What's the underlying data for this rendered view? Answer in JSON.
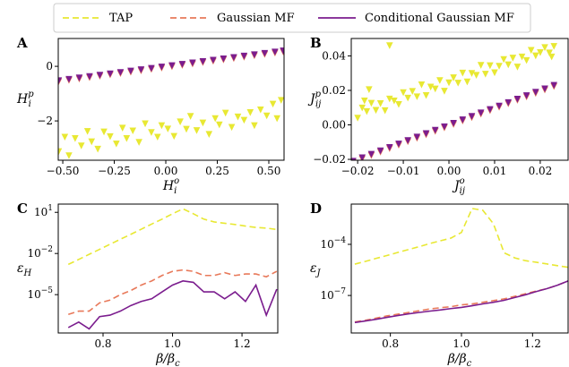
{
  "chart_data": [
    {
      "type": "scatter",
      "panel": "A",
      "xlabel": {
        "base": "H",
        "sub": "i",
        "sup": "o"
      },
      "ylabel": {
        "base": "H",
        "sub": "i",
        "sup": "p"
      },
      "xlim": [
        -0.522,
        0.574
      ],
      "xticks": [
        {
          "value": -0.5,
          "label": "−0.50"
        },
        {
          "value": -0.25,
          "label": "−0.25"
        },
        {
          "value": 0,
          "label": "0.00"
        },
        {
          "value": 0.25,
          "label": "0.25"
        },
        {
          "value": 0.5,
          "label": "0.50"
        }
      ],
      "ylim": [
        -3.44,
        1.02
      ],
      "yticks": [
        {
          "value": -2,
          "label": "−2"
        },
        0
      ],
      "series": [
        {
          "name": "TAP",
          "color": "#e8e833",
          "linestyle": "dashed",
          "marker": "v",
          "x": [
            -0.52,
            -0.49,
            -0.47,
            -0.44,
            -0.41,
            -0.38,
            -0.36,
            -0.33,
            -0.3,
            -0.27,
            -0.24,
            -0.21,
            -0.19,
            -0.16,
            -0.13,
            -0.1,
            -0.07,
            -0.04,
            -0.02,
            0.01,
            0.04,
            0.07,
            0.1,
            0.12,
            0.15,
            0.18,
            0.21,
            0.24,
            0.26,
            0.29,
            0.32,
            0.35,
            0.38,
            0.41,
            0.43,
            0.46,
            0.49,
            0.52,
            0.54,
            0.56
          ],
          "values": [
            -3.12,
            -2.59,
            -3.27,
            -2.64,
            -2.91,
            -2.38,
            -2.76,
            -3.03,
            -2.4,
            -2.57,
            -2.84,
            -2.26,
            -2.64,
            -2.36,
            -2.78,
            -2.1,
            -2.42,
            -2.59,
            -2.17,
            -2.29,
            -2.56,
            -2.03,
            -2.3,
            -1.83,
            -2.35,
            -2.07,
            -2.49,
            -1.91,
            -2.14,
            -1.71,
            -2.23,
            -1.85,
            -1.97,
            -1.69,
            -2.17,
            -1.59,
            -1.81,
            -1.38,
            -1.91,
            -1.24
          ]
        },
        {
          "name": "Gaussian MF",
          "color": "#e8795a",
          "linestyle": "dashed",
          "marker": "v",
          "x": [
            -0.52,
            -0.47,
            -0.42,
            -0.37,
            -0.32,
            -0.27,
            -0.22,
            -0.17,
            -0.12,
            -0.07,
            -0.02,
            0.03,
            0.08,
            0.13,
            0.18,
            0.23,
            0.28,
            0.33,
            0.38,
            0.43,
            0.48,
            0.53,
            0.57
          ],
          "values": [
            -0.56,
            -0.51,
            -0.46,
            -0.41,
            -0.36,
            -0.31,
            -0.26,
            -0.21,
            -0.16,
            -0.11,
            -0.06,
            -0.01,
            0.04,
            0.09,
            0.14,
            0.19,
            0.24,
            0.29,
            0.34,
            0.39,
            0.44,
            0.49,
            0.53
          ]
        },
        {
          "name": "Conditional Gaussian MF",
          "color": "#7b1d8e",
          "linestyle": "solid",
          "marker": "v",
          "x": [
            -0.52,
            -0.47,
            -0.42,
            -0.37,
            -0.32,
            -0.27,
            -0.22,
            -0.17,
            -0.12,
            -0.07,
            -0.02,
            0.03,
            0.08,
            0.13,
            0.18,
            0.23,
            0.28,
            0.33,
            0.38,
            0.43,
            0.48,
            0.53,
            0.57
          ],
          "values": [
            -0.52,
            -0.47,
            -0.42,
            -0.37,
            -0.32,
            -0.27,
            -0.22,
            -0.17,
            -0.12,
            -0.07,
            -0.02,
            0.03,
            0.08,
            0.13,
            0.18,
            0.23,
            0.28,
            0.33,
            0.38,
            0.43,
            0.48,
            0.53,
            0.57
          ]
        }
      ]
    },
    {
      "type": "scatter",
      "panel": "B",
      "xlabel": {
        "base": "J",
        "sub": "ij",
        "sup": "o"
      },
      "ylabel": {
        "base": "J",
        "sub": "ij",
        "sup": "p"
      },
      "xlim": [
        -0.0214,
        0.0261
      ],
      "xticks": [
        {
          "value": -0.02,
          "label": "−0.02"
        },
        {
          "value": -0.01,
          "label": "−0.01"
        },
        {
          "value": 0,
          "label": "0.00"
        },
        0.01,
        0.02
      ],
      "ylim": [
        -0.0205,
        0.0501
      ],
      "yticks": [
        {
          "value": -0.02,
          "label": "−0.02"
        },
        {
          "value": 0,
          "label": "0.00"
        },
        0.02,
        0.04
      ],
      "series": [
        {
          "color": "#e8e833",
          "marker": "v",
          "x": [
            -0.02,
            -0.019,
            -0.018,
            -0.017,
            -0.016,
            -0.015,
            -0.014,
            -0.013,
            -0.012,
            -0.011,
            -0.01,
            -0.009,
            -0.008,
            -0.007,
            -0.006,
            -0.005,
            -0.004,
            -0.003,
            -0.002,
            -0.001,
            0.0,
            0.001,
            0.002,
            0.003,
            0.004,
            0.005,
            0.006,
            0.007,
            0.008,
            0.009,
            0.01,
            0.011,
            0.012,
            0.013,
            0.014,
            0.015,
            0.016,
            0.017,
            0.018,
            0.019,
            0.02,
            0.021,
            0.022,
            0.023,
            -0.013,
            -0.0175,
            -0.0185,
            0.0225
          ],
          "values": [
            0.004,
            0.0099,
            0.0078,
            0.0126,
            0.0085,
            0.0124,
            0.0083,
            0.0151,
            0.014,
            0.0119,
            0.0188,
            0.0156,
            0.0195,
            0.0164,
            0.0233,
            0.0171,
            0.022,
            0.0209,
            0.0258,
            0.0196,
            0.0245,
            0.0274,
            0.0243,
            0.0301,
            0.025,
            0.0299,
            0.0288,
            0.0346,
            0.0295,
            0.0344,
            0.0303,
            0.0341,
            0.038,
            0.0349,
            0.0388,
            0.0336,
            0.0395,
            0.0374,
            0.0433,
            0.0401,
            0.042,
            0.0449,
            0.0418,
            0.0456,
            0.046,
            0.0205,
            0.014,
            0.0395
          ]
        },
        {
          "color": "#e8795a",
          "marker": "v",
          "x": [
            -0.021,
            -0.019,
            -0.017,
            -0.015,
            -0.013,
            -0.011,
            -0.009,
            -0.007,
            -0.005,
            -0.003,
            -0.001,
            0.001,
            0.003,
            0.005,
            0.007,
            0.009,
            0.011,
            0.013,
            0.015,
            0.017,
            0.019,
            0.021,
            0.023
          ],
          "values": [
            -0.0217,
            -0.0197,
            -0.0177,
            -0.0157,
            -0.0137,
            -0.0117,
            -0.0097,
            -0.0077,
            -0.0057,
            -0.0037,
            -0.0017,
            0.0003,
            0.0023,
            0.0043,
            0.0063,
            0.0083,
            0.0103,
            0.0123,
            0.0143,
            0.0163,
            0.0183,
            0.0203,
            0.0223
          ]
        },
        {
          "color": "#7b1d8e",
          "marker": "v",
          "x": [
            -0.021,
            -0.019,
            -0.017,
            -0.015,
            -0.013,
            -0.011,
            -0.009,
            -0.007,
            -0.005,
            -0.003,
            -0.001,
            0.001,
            0.003,
            0.005,
            0.007,
            0.009,
            0.011,
            0.013,
            0.015,
            0.017,
            0.019,
            0.021,
            0.023
          ],
          "values": [
            -0.021,
            -0.019,
            -0.017,
            -0.015,
            -0.013,
            -0.011,
            -0.009,
            -0.007,
            -0.005,
            -0.003,
            -0.001,
            0.001,
            0.003,
            0.005,
            0.007,
            0.009,
            0.011,
            0.013,
            0.015,
            0.017,
            0.019,
            0.021,
            0.023
          ]
        }
      ]
    },
    {
      "type": "line",
      "panel": "C",
      "log_y": true,
      "xlabel": {
        "base": "β/β",
        "sub": "c"
      },
      "ylabel": {
        "base": "ε",
        "sub": "H"
      },
      "xlim": [
        0.671,
        1.303
      ],
      "xticks": [
        0.8,
        {
          "value": 1,
          "label": "1.0"
        },
        1.2
      ],
      "ylim": [
        1.6e-08,
        40
      ],
      "yticks": [
        {
          "value": 1e-05,
          "label": "10",
          "sup": "−5"
        },
        {
          "value": 0.01,
          "label": "10",
          "sup": "−2"
        },
        {
          "value": 10,
          "label": "10",
          "sup": "1"
        }
      ],
      "x": [
        0.7,
        0.73,
        0.76,
        0.79,
        0.82,
        0.85,
        0.88,
        0.91,
        0.94,
        0.97,
        1.0,
        1.03,
        1.06,
        1.09,
        1.12,
        1.15,
        1.18,
        1.21,
        1.24,
        1.27,
        1.3
      ],
      "series": [
        {
          "color": "#e8e833",
          "linestyle": "dashed",
          "values": [
            0.0016,
            0.0037,
            0.0087,
            0.02,
            0.047,
            0.11,
            0.25,
            0.59,
            1.4,
            3.2,
            7.9,
            18,
            7.9,
            3.2,
            2.0,
            1.6,
            1.3,
            1.0,
            0.79,
            0.71,
            0.56
          ]
        },
        {
          "color": "#e8795a",
          "linestyle": "dashed",
          "values": [
            3.6e-07,
            6.3e-07,
            6.3e-07,
            2.5e-06,
            4e-06,
            1e-05,
            2e-05,
            5e-05,
            0.0001,
            0.00025,
            0.0005,
            0.00063,
            0.0005,
            0.00025,
            0.00025,
            0.0004,
            0.00025,
            0.00032,
            0.00032,
            0.0002,
            0.0005
          ]
        },
        {
          "color": "#7b1d8e",
          "linestyle": "solid",
          "values": [
            4e-08,
            1e-07,
            3.2e-08,
            2.5e-07,
            3.2e-07,
            6.3e-07,
            1.6e-06,
            3.2e-06,
            5e-06,
            1.6e-05,
            5e-05,
            0.0001,
            7.9e-05,
            1.6e-05,
            1.6e-05,
            5e-06,
            1.6e-05,
            3.2e-06,
            5e-05,
            3.2e-07,
            2.5e-05
          ]
        }
      ]
    },
    {
      "type": "line",
      "panel": "D",
      "log_y": true,
      "xlabel": {
        "base": "β/β",
        "sub": "c"
      },
      "ylabel": {
        "base": "ε",
        "sub": "J"
      },
      "xlim": [
        0.69,
        1.3
      ],
      "xticks": [
        0.8,
        {
          "value": 1,
          "label": "1.0"
        },
        1.2
      ],
      "ylim": [
        6.3e-10,
        0.023
      ],
      "yticks": [
        {
          "value": 1e-07,
          "label": "10",
          "sup": "−7"
        },
        {
          "value": 0.0001,
          "label": "10",
          "sup": "−4"
        }
      ],
      "x": [
        0.7,
        0.73,
        0.76,
        0.79,
        0.82,
        0.85,
        0.88,
        0.91,
        0.94,
        0.97,
        1.0,
        1.03,
        1.06,
        1.09,
        1.12,
        1.15,
        1.18,
        1.21,
        1.24,
        1.27,
        1.3
      ],
      "series": [
        {
          "color": "#e8e833",
          "linestyle": "dashed",
          "values": [
            6.9e-06,
            1e-05,
            1.5e-05,
            2.2e-05,
            3.3e-05,
            4.9e-05,
            7.2e-05,
            0.00011,
            0.00016,
            0.00023,
            0.0005,
            0.0126,
            0.01,
            0.0016,
            3.2e-05,
            1.6e-05,
            1.1e-05,
            8.9e-06,
            7.1e-06,
            5.6e-06,
            4.5e-06
          ]
        },
        {
          "color": "#e8795a",
          "linestyle": "dashed",
          "values": [
            2.8e-09,
            3.5e-09,
            4.7e-09,
            6.3e-09,
            7.9e-09,
            1e-08,
            1.26e-08,
            1.6e-08,
            1.9e-08,
            2.2e-08,
            2.8e-08,
            3.2e-08,
            4e-08,
            5e-08,
            6.3e-08,
            8.9e-08,
            1.26e-07,
            1.8e-07,
            2.5e-07,
            4e-07,
            7.1e-07
          ]
        },
        {
          "color": "#7b1d8e",
          "linestyle": "solid",
          "values": [
            2.6e-09,
            3.2e-09,
            4e-09,
            5.2e-09,
            6.6e-09,
            8.3e-09,
            1e-08,
            1.2e-08,
            1.4e-08,
            1.7e-08,
            2e-08,
            2.5e-08,
            3.2e-08,
            4e-08,
            5.2e-08,
            7.6e-08,
            1.1e-07,
            1.7e-07,
            2.5e-07,
            4e-07,
            7.1e-07
          ]
        }
      ]
    }
  ]
}
